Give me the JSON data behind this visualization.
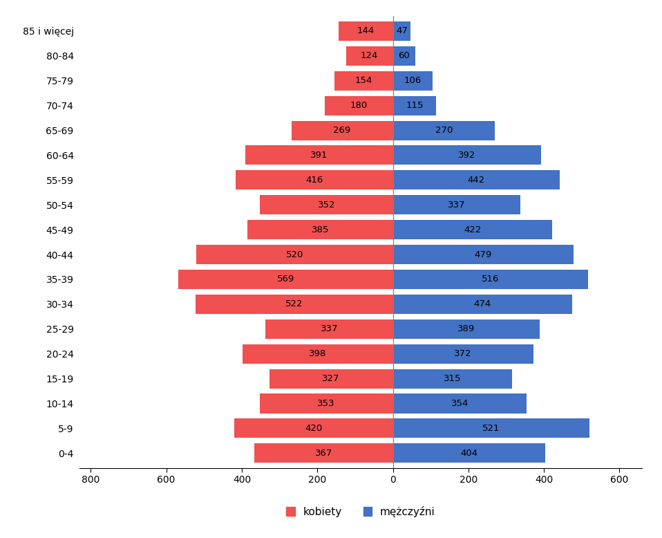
{
  "age_groups": [
    "0-4",
    "5-9",
    "10-14",
    "15-19",
    "20-24",
    "25-29",
    "30-34",
    "35-39",
    "40-44",
    "45-49",
    "50-54",
    "55-59",
    "60-64",
    "65-69",
    "70-74",
    "75-79",
    "80-84",
    "85 i więcej"
  ],
  "kobiety": [
    367,
    420,
    353,
    327,
    398,
    337,
    522,
    569,
    520,
    385,
    352,
    416,
    391,
    269,
    180,
    154,
    124,
    144
  ],
  "mezczyzni": [
    404,
    521,
    354,
    315,
    372,
    389,
    474,
    516,
    479,
    422,
    337,
    442,
    392,
    270,
    115,
    106,
    60,
    47
  ],
  "kobiety_color": "#F05050",
  "mezczyzni_color": "#4472C4",
  "xlim": [
    -830,
    660
  ],
  "xticks": [
    -800,
    -600,
    -400,
    -200,
    0,
    200,
    400,
    600
  ],
  "xtick_labels": [
    "800",
    "600",
    "400",
    "200",
    "0",
    "200",
    "400",
    "600"
  ],
  "legend_kobiety": "kobiety",
  "legend_mezczyzni": "mężczyźni",
  "background_color": "#FFFFFF",
  "bar_height": 0.78,
  "label_fontsize": 9.5,
  "tick_fontsize": 10
}
